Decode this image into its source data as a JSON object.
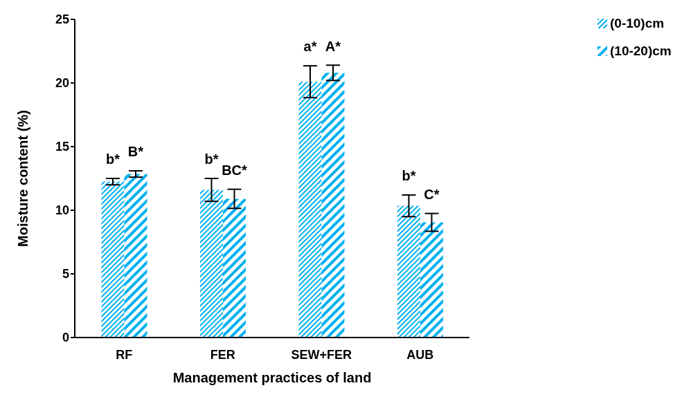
{
  "chart_data": {
    "type": "bar",
    "xlabel": "Management practices of land",
    "ylabel": "Moisture content (%)",
    "categories": [
      "RF",
      "FER",
      "SEW+FER",
      "AUB"
    ],
    "series": [
      {
        "name": "(0-10)cm",
        "color": "#00b0f0",
        "values": [
          12.25,
          11.6,
          20.1,
          10.35
        ],
        "errors": [
          0.25,
          0.9,
          1.25,
          0.85
        ]
      },
      {
        "name": "(10-20)cm",
        "color": "#00b0f0",
        "values": [
          12.85,
          10.9,
          20.8,
          9.05
        ],
        "errors": [
          0.25,
          0.75,
          0.6,
          0.7
        ]
      }
    ],
    "ylim": [
      0,
      25
    ],
    "yticks": [
      0,
      5,
      10,
      15,
      20,
      25
    ],
    "grid": false,
    "legend": "top right",
    "annotations": [
      "b*",
      "B*",
      "b*",
      "BC*",
      "a*",
      "A*",
      "b*",
      "C*"
    ]
  }
}
